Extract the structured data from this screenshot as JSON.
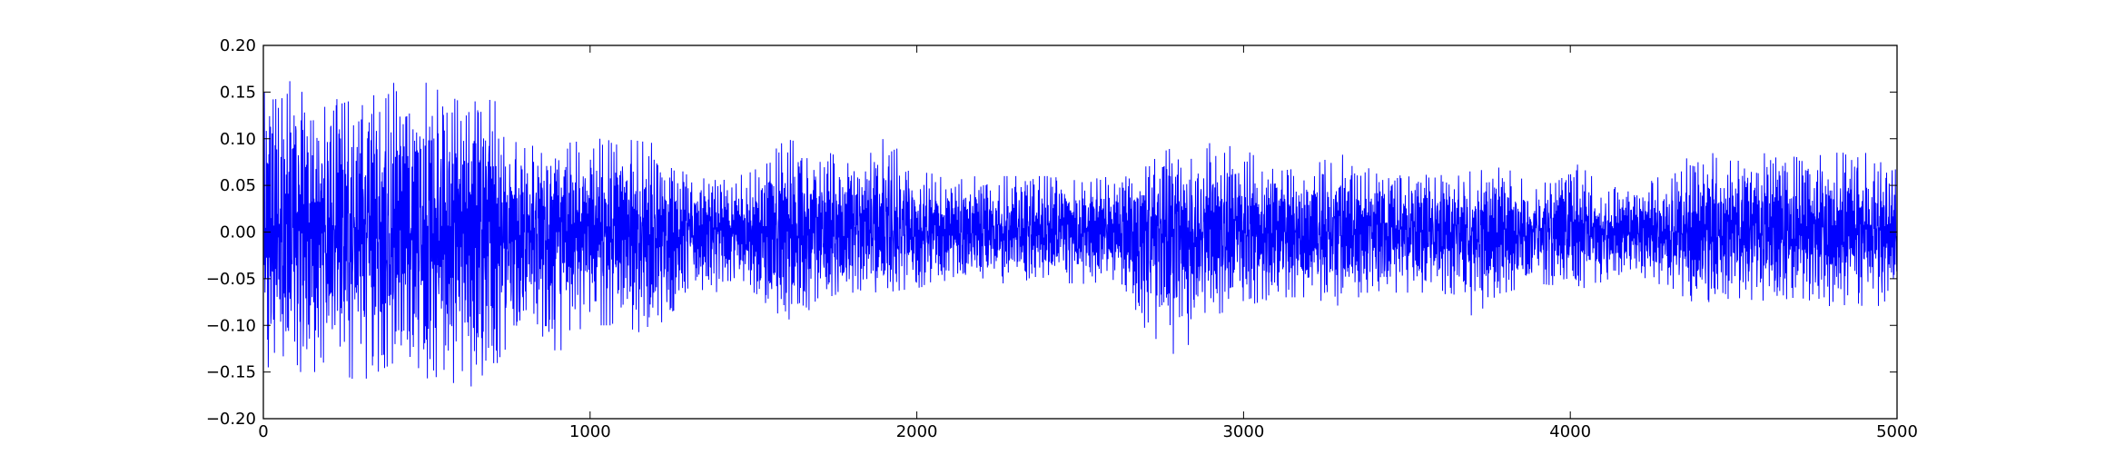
{
  "chart_data": {
    "type": "line",
    "title": "",
    "xlabel": "",
    "ylabel": "",
    "xlim": [
      0,
      5000
    ],
    "ylim": [
      -0.2,
      0.2
    ],
    "grid": false,
    "line_color": "#0000ff",
    "x_ticks": [
      {
        "value": 0,
        "label": "0"
      },
      {
        "value": 1000,
        "label": "1000"
      },
      {
        "value": 2000,
        "label": "2000"
      },
      {
        "value": 3000,
        "label": "3000"
      },
      {
        "value": 4000,
        "label": "4000"
      },
      {
        "value": 5000,
        "label": "5000"
      }
    ],
    "y_ticks": [
      {
        "value": -0.2,
        "label": "−0.20"
      },
      {
        "value": -0.15,
        "label": "−0.15"
      },
      {
        "value": -0.1,
        "label": "−0.10"
      },
      {
        "value": -0.05,
        "label": "−0.05"
      },
      {
        "value": 0.0,
        "label": "0.00"
      },
      {
        "value": 0.05,
        "label": "0.05"
      },
      {
        "value": 0.1,
        "label": "0.10"
      },
      {
        "value": 0.15,
        "label": "0.15"
      },
      {
        "value": 0.2,
        "label": "0.20"
      }
    ],
    "series": [
      {
        "envelope": {
          "x": [
            0,
            50,
            100,
            200,
            300,
            400,
            500,
            600,
            650,
            700,
            800,
            900,
            1000,
            1100,
            1200,
            1300,
            1400,
            1500,
            1600,
            1700,
            1800,
            1900,
            2000,
            2100,
            2200,
            2300,
            2400,
            2500,
            2600,
            2700,
            2800,
            2900,
            3000,
            3100,
            3200,
            3300,
            3400,
            3500,
            3600,
            3700,
            3800,
            3900,
            4000,
            4100,
            4200,
            4300,
            4400,
            4500,
            4600,
            4700,
            4800,
            4900,
            5000
          ],
          "max": [
            0.15,
            0.14,
            0.175,
            0.14,
            0.15,
            0.16,
            0.16,
            0.14,
            0.14,
            0.15,
            0.09,
            0.1,
            0.1,
            0.1,
            0.095,
            0.06,
            0.055,
            0.065,
            0.1,
            0.09,
            0.075,
            0.105,
            0.065,
            0.06,
            0.06,
            0.06,
            0.06,
            0.055,
            0.06,
            0.07,
            0.1,
            0.095,
            0.09,
            0.065,
            0.07,
            0.085,
            0.065,
            0.065,
            0.065,
            0.065,
            0.07,
            0.045,
            0.08,
            0.05,
            0.045,
            0.065,
            0.09,
            0.075,
            0.085,
            0.08,
            0.085,
            0.085,
            0.08
          ],
          "min": [
            -0.195,
            -0.13,
            -0.15,
            -0.15,
            -0.16,
            -0.14,
            -0.17,
            -0.16,
            -0.18,
            -0.15,
            -0.09,
            -0.13,
            -0.1,
            -0.1,
            -0.115,
            -0.06,
            -0.065,
            -0.065,
            -0.095,
            -0.08,
            -0.065,
            -0.065,
            -0.06,
            -0.055,
            -0.055,
            -0.055,
            -0.055,
            -0.055,
            -0.06,
            -0.105,
            -0.135,
            -0.09,
            -0.08,
            -0.07,
            -0.07,
            -0.08,
            -0.065,
            -0.065,
            -0.065,
            -0.09,
            -0.065,
            -0.055,
            -0.06,
            -0.06,
            -0.045,
            -0.06,
            -0.08,
            -0.07,
            -0.075,
            -0.07,
            -0.08,
            -0.09,
            -0.065
          ]
        },
        "samples": 5000
      }
    ]
  }
}
